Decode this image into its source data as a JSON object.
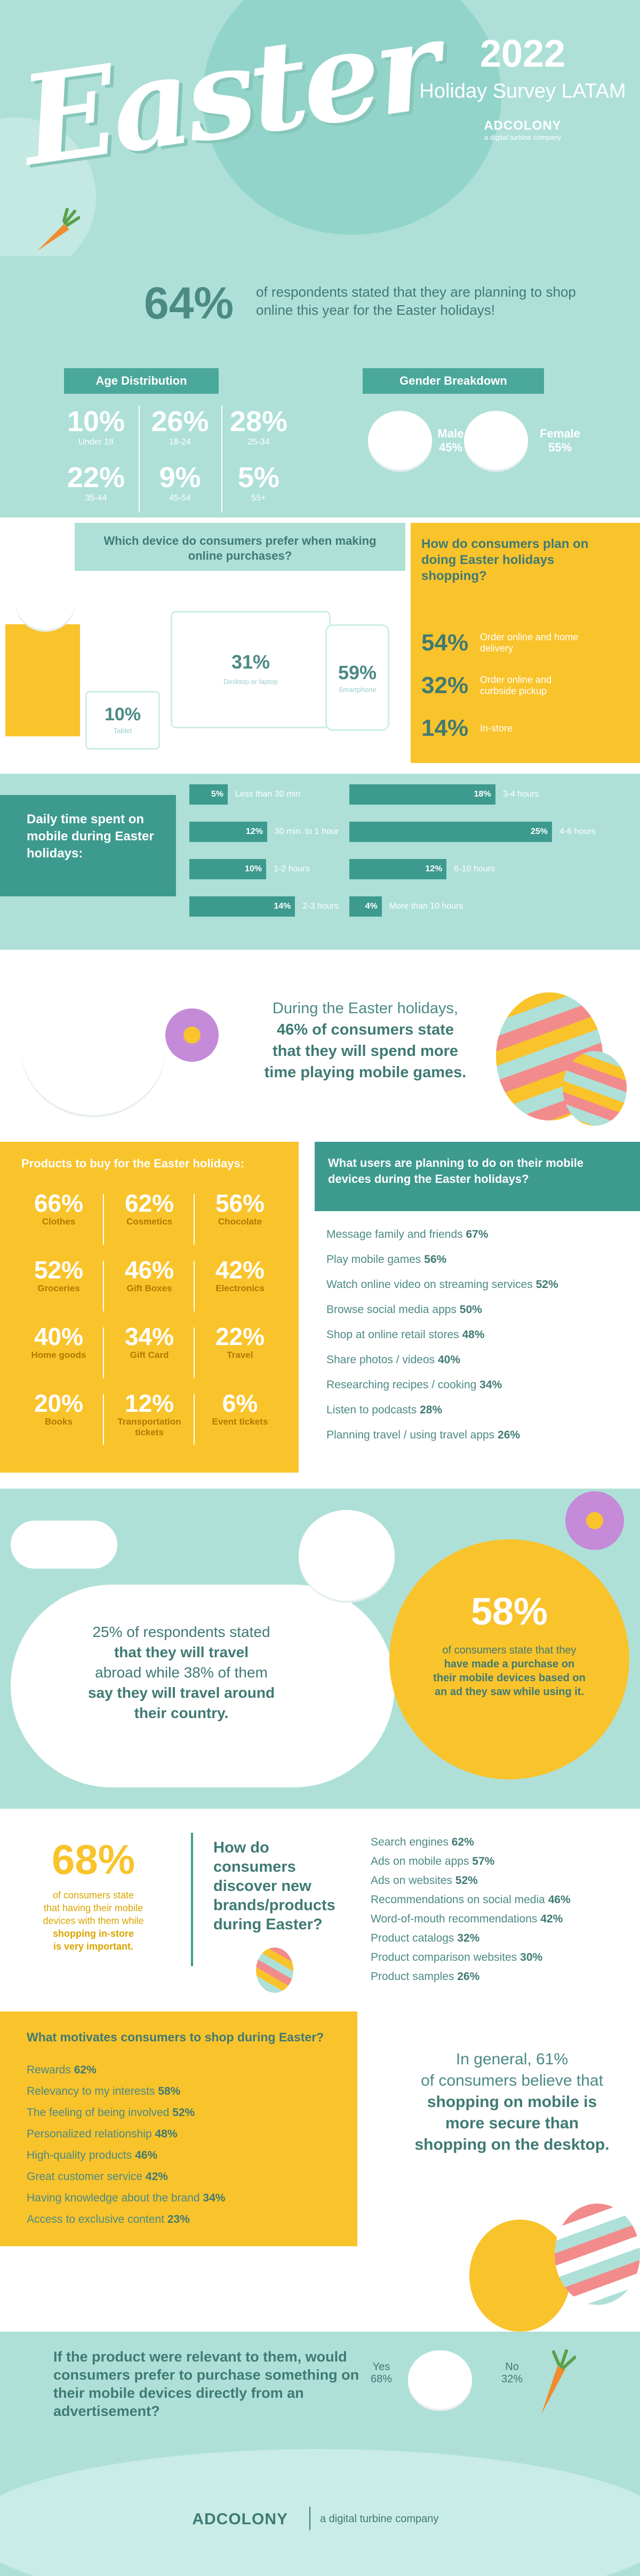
{
  "header": {
    "word": "Easter",
    "year": "2022",
    "subtitle": "Holiday Survey LATAM",
    "brand": "ADCOLONY",
    "brand_sub": "a digital turbine company"
  },
  "online": {
    "pct": "64%",
    "text": "of respondents stated that they are planning to shop online this year for the Easter holidays!"
  },
  "age": {
    "title": "Age Distribution",
    "items": [
      {
        "value": "10%",
        "label": "Under 18"
      },
      {
        "value": "26%",
        "label": "18-24"
      },
      {
        "value": "28%",
        "label": "25-34"
      },
      {
        "value": "22%",
        "label": "35-44"
      },
      {
        "value": "9%",
        "label": "45-54"
      },
      {
        "value": "5%",
        "label": "55+"
      }
    ]
  },
  "gender": {
    "title": "Gender Breakdown",
    "male_label": "Male",
    "male_value": "45%",
    "female_label": "Female",
    "female_value": "55%"
  },
  "device": {
    "question": "Which device do consumers prefer when making online purchases?",
    "desktop_value": "31%",
    "desktop_label": "Desktop or laptop",
    "smartphone_value": "59%",
    "smartphone_label": "Smartphone",
    "tablet_value": "10%",
    "tablet_label": "Tablet"
  },
  "plan": {
    "question": "How do consumers plan on doing Easter holidays shopping?",
    "items": [
      {
        "value": "54%",
        "label": "Order online and home delivery"
      },
      {
        "value": "32%",
        "label": "Order online and curbside pickup"
      },
      {
        "value": "14%",
        "label": "In-store"
      }
    ]
  },
  "daily": {
    "title": "Daily time spent on mobile during Easter holidays:",
    "left": [
      {
        "value": "5%",
        "label": "Less than 30 min",
        "pct": 5
      },
      {
        "value": "12%",
        "label": "30 min. to 1 hour",
        "pct": 12
      },
      {
        "value": "10%",
        "label": "1-2 hours",
        "pct": 10
      },
      {
        "value": "14%",
        "label": "2-3 hours",
        "pct": 14
      }
    ],
    "right": [
      {
        "value": "18%",
        "label": "3-4 hours",
        "pct": 18
      },
      {
        "value": "25%",
        "label": "4-6 hours",
        "pct": 25
      },
      {
        "value": "12%",
        "label": "6-10 hours",
        "pct": 12
      },
      {
        "value": "4%",
        "label": "More than 10 hours",
        "pct": 4
      }
    ]
  },
  "games": {
    "line1": "During the Easter holidays,",
    "line2": "46% of consumers state",
    "line3": "that they will spend more",
    "line4": "time playing mobile games."
  },
  "products": {
    "title": "Products to buy for the Easter holidays:",
    "items": [
      {
        "value": "66%",
        "label": "Clothes"
      },
      {
        "value": "62%",
        "label": "Cosmetics"
      },
      {
        "value": "56%",
        "label": "Chocolate"
      },
      {
        "value": "52%",
        "label": "Groceries"
      },
      {
        "value": "46%",
        "label": "Gift Boxes"
      },
      {
        "value": "42%",
        "label": "Electronics"
      },
      {
        "value": "40%",
        "label": "Home goods"
      },
      {
        "value": "34%",
        "label": "Gift Card"
      },
      {
        "value": "22%",
        "label": "Travel"
      },
      {
        "value": "20%",
        "label": "Books"
      },
      {
        "value": "12%",
        "label": "Transportation tickets"
      },
      {
        "value": "6%",
        "label": "Event tickets"
      }
    ]
  },
  "activities": {
    "title": "What users are planning to do on their mobile devices during the Easter holidays?",
    "items": [
      {
        "label": "Message family and friends",
        "value": "67%"
      },
      {
        "label": "Play mobile games",
        "value": "56%"
      },
      {
        "label": "Watch online video on streaming services",
        "value": "52%"
      },
      {
        "label": "Browse social media apps",
        "value": "50%"
      },
      {
        "label": "Shop at online retail stores",
        "value": "48%"
      },
      {
        "label": "Share photos / videos",
        "value": "40%"
      },
      {
        "label": "Researching recipes / cooking",
        "value": "34%"
      },
      {
        "label": "Listen to podcasts",
        "value": "28%"
      },
      {
        "label": "Planning travel / using travel apps",
        "value": "26%"
      }
    ]
  },
  "travel": {
    "line1": "25% of respondents stated",
    "line2": "that they will travel",
    "line3": "abroad while 38% of them",
    "line4": "say they will travel around",
    "line5": "their country."
  },
  "ad58": {
    "pct": "58%",
    "line1": "of consumers state that they",
    "line2": "have made a purchase on",
    "line3": "their mobile devices based on",
    "line4": "an ad they saw while using it."
  },
  "instore": {
    "pct": "68%",
    "line1": "of consumers state",
    "line2": "that having their mobile",
    "line3": "devices with them while",
    "line4": "shopping in-store",
    "line5": "is very important."
  },
  "discover": {
    "title": "How do consumers discover new brands/products during Easter?",
    "items": [
      {
        "label": "Search engines",
        "value": "62%"
      },
      {
        "label": "Ads on mobile apps",
        "value": "57%"
      },
      {
        "label": "Ads on websites",
        "value": "52%"
      },
      {
        "label": "Recommendations on social media",
        "value": "46%"
      },
      {
        "label": "Word-of-mouth recommendations",
        "value": "42%"
      },
      {
        "label": "Product catalogs",
        "value": "32%"
      },
      {
        "label": "Product comparison websites",
        "value": "30%"
      },
      {
        "label": "Product samples",
        "value": "26%"
      }
    ]
  },
  "motivates": {
    "title": "What motivates consumers to shop during Easter?",
    "items": [
      {
        "label": "Rewards",
        "value": "62%"
      },
      {
        "label": "Relevancy to my interests",
        "value": "58%"
      },
      {
        "label": "The feeling of being involved",
        "value": "52%"
      },
      {
        "label": "Personalized relationship",
        "value": "48%"
      },
      {
        "label": "High-quality products",
        "value": "46%"
      },
      {
        "label": "Great customer service",
        "value": "42%"
      },
      {
        "label": "Having knowledge about the brand",
        "value": "34%"
      },
      {
        "label": "Access to exclusive content",
        "value": "23%"
      }
    ]
  },
  "secure": {
    "line1": "In general, 61%",
    "line2": "of consumers believe that",
    "line3": "shopping on mobile is",
    "line4": "more secure than",
    "line5": "shopping on the desktop."
  },
  "relevant": {
    "question": "If the product were relevant to them, would consumers prefer to purchase something on their mobile devices directly from an advertisement?",
    "yes_label": "Yes",
    "yes_value": "68%",
    "no_label": "No",
    "no_value": "32%"
  },
  "footer": {
    "brand": "ADCOLONY",
    "tag": "a digital turbine company"
  },
  "colors": {
    "teal_bg": "#aee0d8",
    "teal_dark": "#3d9a8f",
    "yellow": "#f9c32b",
    "text_teal": "#4c8a84"
  }
}
